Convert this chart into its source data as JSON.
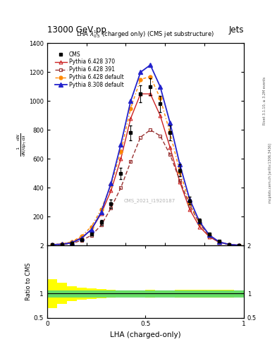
{
  "title_top": "13000 GeV pp",
  "title_right": "Jets",
  "plot_title": "LHA $\\lambda^{1}_{0.5}$ (charged only) (CMS jet substructure)",
  "xlabel": "LHA (charged-only)",
  "ylabel_main": "mathrm d N / mathrm d p_T mathrm d lambda",
  "ylabel_ratio": "Ratio to CMS",
  "watermark": "CMS_2021_I1920187",
  "rivet_label": "Rivet 3.1.10, ≥ 3.2M events",
  "mcplots_label": "mcplots.cern.ch [arXiv:1306.3436]",
  "xdata": [
    0.025,
    0.075,
    0.125,
    0.175,
    0.225,
    0.275,
    0.325,
    0.375,
    0.425,
    0.475,
    0.525,
    0.575,
    0.625,
    0.675,
    0.725,
    0.775,
    0.825,
    0.875,
    0.925,
    0.975
  ],
  "cms_data": [
    5,
    8,
    15,
    40,
    80,
    160,
    290,
    500,
    780,
    1050,
    1100,
    980,
    780,
    520,
    310,
    170,
    80,
    30,
    8,
    3
  ],
  "cms_errors": [
    1,
    2,
    3,
    6,
    10,
    18,
    30,
    40,
    50,
    60,
    60,
    55,
    50,
    40,
    28,
    18,
    10,
    5,
    2,
    1
  ],
  "py6_370": [
    6,
    10,
    20,
    55,
    110,
    220,
    380,
    600,
    880,
    1050,
    1050,
    900,
    680,
    440,
    250,
    130,
    60,
    22,
    7,
    2
  ],
  "py6_391": [
    4,
    7,
    14,
    35,
    70,
    140,
    260,
    400,
    580,
    750,
    800,
    760,
    630,
    450,
    280,
    150,
    65,
    22,
    7,
    2
  ],
  "py6_default": [
    7,
    12,
    25,
    65,
    130,
    250,
    420,
    650,
    950,
    1150,
    1170,
    1020,
    780,
    510,
    295,
    155,
    70,
    25,
    8,
    2
  ],
  "py8_default": [
    5,
    9,
    18,
    50,
    110,
    230,
    430,
    700,
    1000,
    1200,
    1250,
    1100,
    850,
    560,
    320,
    165,
    72,
    25,
    7,
    2
  ],
  "color_py6_370": "#cc2222",
  "color_py6_391": "#993333",
  "color_py6_default": "#ff8800",
  "color_py8_default": "#2222cc",
  "xlim": [
    0,
    1
  ],
  "ylim_main": [
    0,
    1400
  ],
  "ylim_ratio": [
    0.5,
    2.0
  ],
  "ratio_yticks": [
    0.5,
    1.0,
    2.0
  ],
  "green_band_lo": 0.93,
  "green_band_hi": 1.07,
  "yellow_band_edges": [
    0.0,
    0.05,
    0.1,
    0.15,
    0.2,
    0.25,
    0.3,
    0.35,
    0.4,
    0.45,
    0.5,
    0.55,
    0.6,
    0.65,
    0.7,
    0.75,
    0.8,
    0.85,
    0.9,
    0.95,
    1.0
  ],
  "yellow_band_lo_values": [
    0.7,
    0.78,
    0.84,
    0.87,
    0.89,
    0.91,
    0.92,
    0.93,
    0.93,
    0.93,
    0.92,
    0.93,
    0.93,
    0.92,
    0.92,
    0.92,
    0.92,
    0.92,
    0.92,
    0.93
  ],
  "yellow_band_hi_values": [
    1.3,
    1.22,
    1.16,
    1.13,
    1.11,
    1.09,
    1.08,
    1.07,
    1.07,
    1.07,
    1.08,
    1.07,
    1.07,
    1.08,
    1.08,
    1.08,
    1.08,
    1.08,
    1.08,
    1.07
  ]
}
